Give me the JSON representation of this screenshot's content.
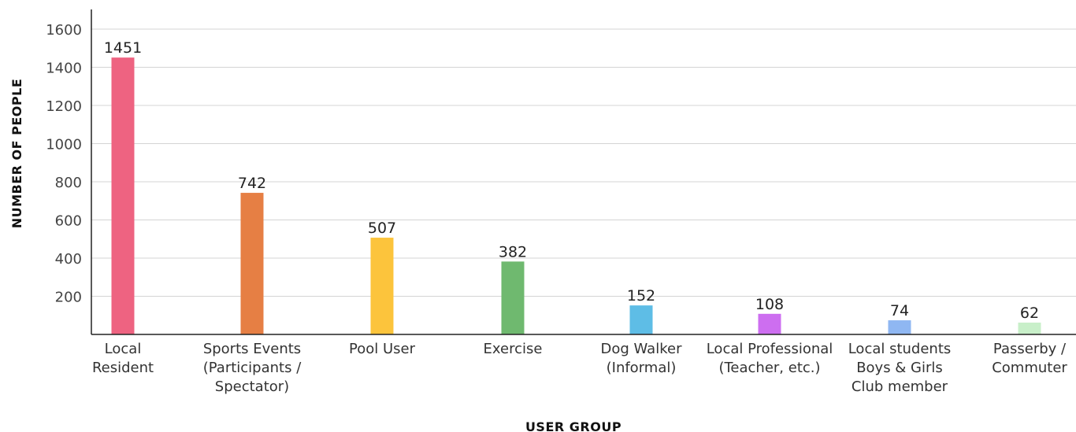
{
  "chart_data": {
    "type": "bar",
    "title": "",
    "xlabel": "USER GROUP",
    "ylabel": "NUMBER OF PEOPLE",
    "ylim": [
      0,
      1700
    ],
    "yticks": [
      "200",
      "400",
      "600",
      "800",
      "1000",
      "1200",
      "1400",
      "1600"
    ],
    "grid": true,
    "categories": [
      [
        "Local",
        "Resident"
      ],
      [
        "Sports Events",
        "(Participants /",
        "Spectator)"
      ],
      [
        "Pool User"
      ],
      [
        "Exercise"
      ],
      [
        "Dog Walker",
        "(Informal)"
      ],
      [
        "Local Professional",
        "(Teacher, etc.)"
      ],
      [
        "Local students",
        "Boys & Girls",
        "Club member"
      ],
      [
        "Passerby /",
        "Commuter"
      ]
    ],
    "values": [
      1451,
      742,
      507,
      382,
      152,
      108,
      74,
      62
    ],
    "value_labels": [
      "1451",
      "742",
      "507",
      "382",
      "152",
      "108",
      "74",
      "62"
    ],
    "colors": [
      "#ee6381",
      "#e67f44",
      "#fcc43c",
      "#6fb96f",
      "#5ebde6",
      "#cd6ef0",
      "#8fb7f2",
      "#c8efc9"
    ]
  }
}
